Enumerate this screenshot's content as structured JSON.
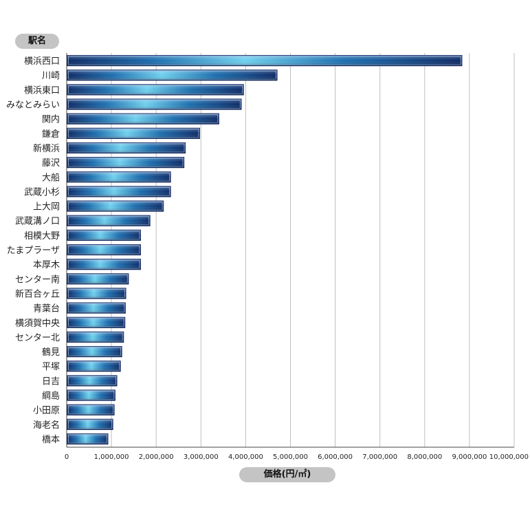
{
  "chart_data": {
    "type": "bar",
    "orientation": "horizontal",
    "ylabel": "駅名",
    "xlabel": "価格(円/㎡)",
    "xlim": [
      0,
      10000000
    ],
    "xticks": [
      0,
      1000000,
      2000000,
      3000000,
      4000000,
      5000000,
      6000000,
      7000000,
      8000000,
      9000000,
      10000000
    ],
    "xtick_labels": [
      "0",
      "1,000,000",
      "2,000,000",
      "3,000,000",
      "4,000,000",
      "5,000,000",
      "6,000,000",
      "7,000,000",
      "8,000,000",
      "9,000,000",
      "10,000,000"
    ],
    "grid": true,
    "categories": [
      "横浜西口",
      "川崎",
      "横浜東口",
      "みなとみらい",
      "関内",
      "鎌倉",
      "新横浜",
      "藤沢",
      "大船",
      "武蔵小杉",
      "上大岡",
      "武蔵溝ノ口",
      "相模大野",
      "たまプラーザ",
      "本厚木",
      "センター南",
      "新百合ヶ丘",
      "青葉台",
      "横須賀中央",
      "センター北",
      "鶴見",
      "平塚",
      "日吉",
      "綱島",
      "小田原",
      "海老名",
      "橋本"
    ],
    "values": [
      8830000,
      4700000,
      3950000,
      3900000,
      3400000,
      2970000,
      2650000,
      2620000,
      2320000,
      2320000,
      2160000,
      1860000,
      1650000,
      1650000,
      1650000,
      1380000,
      1320000,
      1310000,
      1300000,
      1270000,
      1230000,
      1200000,
      1120000,
      1080000,
      1060000,
      1030000,
      920000
    ]
  },
  "colors": {
    "bar_edge": "#1c2f6a",
    "bar_dark": "#0e2a66",
    "bar_mid": "#1d6fb0",
    "bar_light": "#6fd0ee",
    "grid": "#bfbfbf",
    "axis": "#444444",
    "pill": "#c4c4c4"
  }
}
